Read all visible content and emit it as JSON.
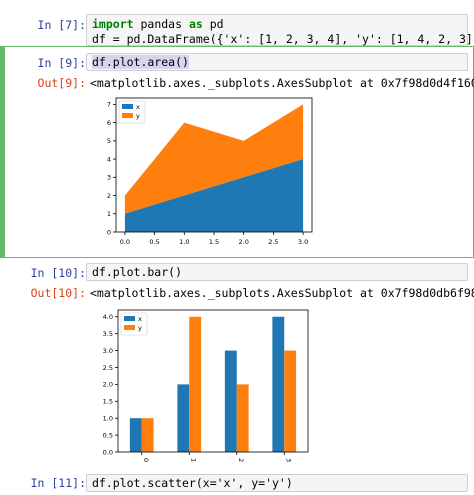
{
  "cells": [
    {
      "prompt": "In [7]:",
      "code_line1": {
        "import": "import",
        "pandas": " pandas ",
        "as": "as",
        "pd": " pd"
      },
      "code_line2": "df = pd.DataFrame({'x': [1, 2, 3, 4], 'y': [1, 4, 2, 3]})"
    },
    {
      "prompt": "In [9]:",
      "code": "df.plot.area()",
      "out_prompt": "Out[9]:",
      "output": "<matplotlib.axes._subplots.AxesSubplot at 0x7f98d0d4f160>"
    },
    {
      "prompt": "In [10]:",
      "code": "df.plot.bar()",
      "out_prompt": "Out[10]:",
      "output": "<matplotlib.axes._subplots.AxesSubplot at 0x7f98d0db6f98>"
    },
    {
      "prompt": "In [11]:",
      "code": "df.plot.scatter(x='x', y='y')"
    }
  ],
  "colors": {
    "x": "#1f77b4",
    "y": "#ff7f0e",
    "selected_border": "#66bb6a"
  },
  "chart_data": [
    {
      "type": "area",
      "x": [
        0,
        1,
        2,
        3
      ],
      "series": [
        {
          "name": "x",
          "values": [
            1,
            2,
            3,
            4
          ]
        },
        {
          "name": "y",
          "values": [
            1,
            4,
            2,
            3
          ]
        }
      ],
      "stacked": true,
      "xticks": [
        "0.0",
        "0.5",
        "1.0",
        "1.5",
        "2.0",
        "2.5",
        "3.0"
      ],
      "yticks": [
        "0",
        "1",
        "2",
        "3",
        "4",
        "5",
        "6",
        "7"
      ],
      "xlim": [
        -0.15,
        3.15
      ],
      "ylim": [
        0,
        7.35
      ],
      "legend": "upper-left"
    },
    {
      "type": "bar",
      "categories": [
        "0",
        "1",
        "2",
        "3"
      ],
      "series": [
        {
          "name": "x",
          "values": [
            1,
            2,
            3,
            4
          ]
        },
        {
          "name": "y",
          "values": [
            1,
            4,
            2,
            3
          ]
        }
      ],
      "yticks": [
        "0.0",
        "0.5",
        "1.0",
        "1.5",
        "2.0",
        "2.5",
        "3.0",
        "3.5",
        "4.0"
      ],
      "ylim": [
        0,
        4.2
      ],
      "legend": "upper-left"
    }
  ]
}
